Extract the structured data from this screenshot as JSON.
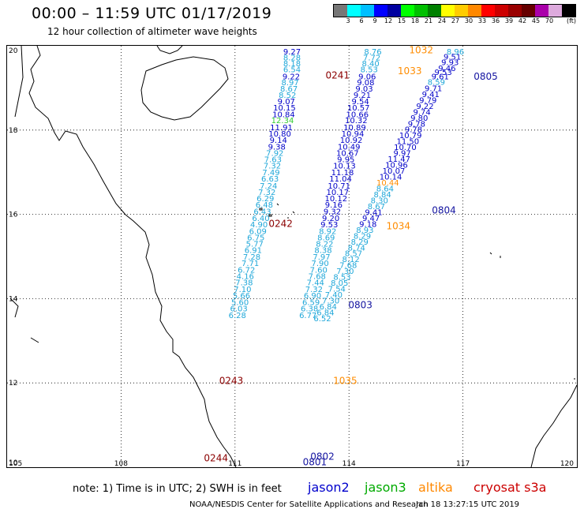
{
  "title": "00:00 – 11:59 UTC 01/17/2019",
  "subtitle": "12 hour collection of altimeter wave heights",
  "scale": {
    "unit": "(ft)",
    "colors": [
      "#777777",
      "#00ffff",
      "#00bfff",
      "#0000ff",
      "#0000a0",
      "#00ff00",
      "#00c000",
      "#008000",
      "#ffff00",
      "#ffcc00",
      "#ff8800",
      "#ff0000",
      "#cc0000",
      "#990000",
      "#660000",
      "#aa00aa",
      "#ddaadd",
      "#000000"
    ],
    "ticks": [
      "3",
      "6",
      "9",
      "12",
      "15",
      "18",
      "21",
      "24",
      "27",
      "30",
      "33",
      "36",
      "39",
      "42",
      "45",
      "70"
    ]
  },
  "axes": {
    "x_ticks": [
      "105",
      "108",
      "111",
      "114",
      "117",
      "120"
    ],
    "y_ticks": [
      "20",
      "18",
      "16",
      "14",
      "12",
      "10"
    ]
  },
  "note": "note:  1) Time is in UTC; 2) SWH is in feet",
  "satellites": [
    {
      "name": "jason2",
      "color": "#0000cc"
    },
    {
      "name": "jason3",
      "color": "#00aa00"
    },
    {
      "name": "altika",
      "color": "#ff8800"
    },
    {
      "name": "cryosat s3a",
      "color": "#cc0000"
    }
  ],
  "credit": "NOAA/NESDIS Center for Satellite Applications and Research",
  "timestamp": "Jan 18 13:27:15 UTC 2019",
  "palette": {
    "cyan": "#1fa7d9",
    "blue": "#0000c8",
    "dark": "#1414a0",
    "orange": "#ff8c00",
    "maroon": "#8b0000",
    "green": "#33cc33"
  },
  "wave_labels": {
    "track_a": [
      {
        "v": "9.27",
        "c": "blue",
        "lon": 112.5,
        "lat": 19.87
      },
      {
        "v": "8.28",
        "c": "cyan",
        "lon": 112.5,
        "lat": 19.73
      },
      {
        "v": "8.18",
        "c": "cyan",
        "lon": 112.5,
        "lat": 19.59
      },
      {
        "v": "6.54",
        "c": "cyan",
        "lon": 112.5,
        "lat": 19.45
      },
      {
        "v": "9.22",
        "c": "blue",
        "lon": 112.48,
        "lat": 19.28
      },
      {
        "v": "8.97",
        "c": "cyan",
        "lon": 112.45,
        "lat": 19.14
      },
      {
        "v": "8.67",
        "c": "cyan",
        "lon": 112.42,
        "lat": 18.99
      },
      {
        "v": "8.52",
        "c": "cyan",
        "lon": 112.38,
        "lat": 18.84
      },
      {
        "v": "9.07",
        "c": "blue",
        "lon": 112.35,
        "lat": 18.69
      },
      {
        "v": "10.15",
        "c": "blue",
        "lon": 112.3,
        "lat": 18.54
      },
      {
        "v": "10.84",
        "c": "blue",
        "lon": 112.28,
        "lat": 18.38
      },
      {
        "v": "12.34",
        "c": "green",
        "lon": 112.25,
        "lat": 18.24
      },
      {
        "v": "11.91",
        "c": "blue",
        "lon": 112.22,
        "lat": 18.07
      },
      {
        "v": "10.80",
        "c": "blue",
        "lon": 112.18,
        "lat": 17.92
      },
      {
        "v": "9.14",
        "c": "blue",
        "lon": 112.14,
        "lat": 17.77
      },
      {
        "v": "9.38",
        "c": "blue",
        "lon": 112.1,
        "lat": 17.61
      },
      {
        "v": "7.92",
        "c": "cyan",
        "lon": 112.05,
        "lat": 17.46
      },
      {
        "v": "7.63",
        "c": "cyan",
        "lon": 112.0,
        "lat": 17.31
      },
      {
        "v": "7.32",
        "c": "cyan",
        "lon": 111.98,
        "lat": 17.16
      },
      {
        "v": "7.49",
        "c": "cyan",
        "lon": 111.95,
        "lat": 17.0
      },
      {
        "v": "6.63",
        "c": "cyan",
        "lon": 111.92,
        "lat": 16.85
      },
      {
        "v": "7.24",
        "c": "cyan",
        "lon": 111.88,
        "lat": 16.69
      },
      {
        "v": "7.32",
        "c": "cyan",
        "lon": 111.84,
        "lat": 16.54
      },
      {
        "v": "6.29",
        "c": "cyan",
        "lon": 111.8,
        "lat": 16.39
      },
      {
        "v": "6.48",
        "c": "cyan",
        "lon": 111.77,
        "lat": 16.24
      },
      {
        "v": "6.43",
        "c": "cyan",
        "lon": 111.72,
        "lat": 16.08
      },
      {
        "v": "6.40",
        "c": "cyan",
        "lon": 111.68,
        "lat": 15.92
      },
      {
        "v": "4.90",
        "c": "cyan",
        "lon": 111.63,
        "lat": 15.77
      },
      {
        "v": "6.09",
        "c": "cyan",
        "lon": 111.6,
        "lat": 15.61
      },
      {
        "v": "6.75",
        "c": "cyan",
        "lon": 111.55,
        "lat": 15.46
      },
      {
        "v": "5.77",
        "c": "cyan",
        "lon": 111.52,
        "lat": 15.31
      },
      {
        "v": "6.91",
        "c": "cyan",
        "lon": 111.48,
        "lat": 15.16
      },
      {
        "v": "7.28",
        "c": "cyan",
        "lon": 111.44,
        "lat": 15.0
      },
      {
        "v": "7.71",
        "c": "cyan",
        "lon": 111.4,
        "lat": 14.85
      },
      {
        "v": "6.72",
        "c": "cyan",
        "lon": 111.3,
        "lat": 14.69
      },
      {
        "v": "4.16",
        "c": "cyan",
        "lon": 111.27,
        "lat": 14.54
      },
      {
        "v": "7.38",
        "c": "cyan",
        "lon": 111.24,
        "lat": 14.39
      },
      {
        "v": "7.10",
        "c": "cyan",
        "lon": 111.2,
        "lat": 14.23
      },
      {
        "v": "5.66",
        "c": "cyan",
        "lon": 111.17,
        "lat": 14.08
      },
      {
        "v": "5.60",
        "c": "cyan",
        "lon": 111.13,
        "lat": 13.92
      },
      {
        "v": "6.03",
        "c": "cyan",
        "lon": 111.1,
        "lat": 13.77
      },
      {
        "v": "6.28",
        "c": "cyan",
        "lon": 111.06,
        "lat": 13.61
      }
    ],
    "track_b": [
      {
        "v": "8.76",
        "c": "cyan",
        "lon": 114.63,
        "lat": 19.87
      },
      {
        "v": "7.72",
        "c": "cyan",
        "lon": 114.6,
        "lat": 19.73
      },
      {
        "v": "8.40",
        "c": "cyan",
        "lon": 114.57,
        "lat": 19.59
      },
      {
        "v": "8.53",
        "c": "cyan",
        "lon": 114.53,
        "lat": 19.45
      },
      {
        "v": "9.06",
        "c": "blue",
        "lon": 114.48,
        "lat": 19.28
      },
      {
        "v": "9.08",
        "c": "blue",
        "lon": 114.44,
        "lat": 19.14
      },
      {
        "v": "9.03",
        "c": "blue",
        "lon": 114.4,
        "lat": 18.99
      },
      {
        "v": "9.21",
        "c": "blue",
        "lon": 114.35,
        "lat": 18.84
      },
      {
        "v": "9.54",
        "c": "blue",
        "lon": 114.3,
        "lat": 18.69
      },
      {
        "v": "10.57",
        "c": "blue",
        "lon": 114.25,
        "lat": 18.54
      },
      {
        "v": "10.66",
        "c": "blue",
        "lon": 114.22,
        "lat": 18.38
      },
      {
        "v": "10.32",
        "c": "blue",
        "lon": 114.19,
        "lat": 18.24
      },
      {
        "v": "10.89",
        "c": "blue",
        "lon": 114.15,
        "lat": 18.07
      },
      {
        "v": "10.94",
        "c": "blue",
        "lon": 114.1,
        "lat": 17.92
      },
      {
        "v": "10.92",
        "c": "blue",
        "lon": 114.06,
        "lat": 17.77
      },
      {
        "v": "10.49",
        "c": "blue",
        "lon": 114.0,
        "lat": 17.61
      },
      {
        "v": "10.67",
        "c": "blue",
        "lon": 113.96,
        "lat": 17.46
      },
      {
        "v": "9.95",
        "c": "blue",
        "lon": 113.92,
        "lat": 17.31
      },
      {
        "v": "10.13",
        "c": "blue",
        "lon": 113.88,
        "lat": 17.16
      },
      {
        "v": "11.18",
        "c": "blue",
        "lon": 113.83,
        "lat": 17.0
      },
      {
        "v": "11.04",
        "c": "blue",
        "lon": 113.78,
        "lat": 16.85
      },
      {
        "v": "10.71",
        "c": "blue",
        "lon": 113.74,
        "lat": 16.69
      },
      {
        "v": "10.17",
        "c": "blue",
        "lon": 113.7,
        "lat": 16.54
      },
      {
        "v": "10.12",
        "c": "blue",
        "lon": 113.66,
        "lat": 16.39
      },
      {
        "v": "9.16",
        "c": "blue",
        "lon": 113.6,
        "lat": 16.24
      },
      {
        "v": "9.32",
        "c": "blue",
        "lon": 113.56,
        "lat": 16.08
      },
      {
        "v": "9.20",
        "c": "blue",
        "lon": 113.52,
        "lat": 15.92
      },
      {
        "v": "9.53",
        "c": "blue",
        "lon": 113.48,
        "lat": 15.77
      },
      {
        "v": "8.92",
        "c": "cyan",
        "lon": 113.44,
        "lat": 15.61
      },
      {
        "v": "8.69",
        "c": "cyan",
        "lon": 113.4,
        "lat": 15.46
      },
      {
        "v": "8.22",
        "c": "cyan",
        "lon": 113.36,
        "lat": 15.31
      },
      {
        "v": "8.38",
        "c": "cyan",
        "lon": 113.32,
        "lat": 15.16
      },
      {
        "v": "7.97",
        "c": "cyan",
        "lon": 113.28,
        "lat": 15.0
      },
      {
        "v": "7.90",
        "c": "cyan",
        "lon": 113.24,
        "lat": 14.85
      },
      {
        "v": "7.60",
        "c": "cyan",
        "lon": 113.2,
        "lat": 14.69
      },
      {
        "v": "7.68",
        "c": "cyan",
        "lon": 113.16,
        "lat": 14.54
      },
      {
        "v": "7.44",
        "c": "cyan",
        "lon": 113.12,
        "lat": 14.39
      },
      {
        "v": "7.32",
        "c": "cyan",
        "lon": 113.08,
        "lat": 14.23
      },
      {
        "v": "6.90",
        "c": "cyan",
        "lon": 113.04,
        "lat": 14.08
      },
      {
        "v": "6.59",
        "c": "cyan",
        "lon": 113.0,
        "lat": 13.92
      },
      {
        "v": "6.38",
        "c": "cyan",
        "lon": 112.96,
        "lat": 13.77
      },
      {
        "v": "6.77",
        "c": "cyan",
        "lon": 112.92,
        "lat": 13.61
      }
    ],
    "track_c": [
      {
        "v": "8.96",
        "c": "cyan",
        "lon": 116.8,
        "lat": 19.87
      },
      {
        "v": "9.51",
        "c": "blue",
        "lon": 116.72,
        "lat": 19.75
      },
      {
        "v": "9.93",
        "c": "blue",
        "lon": 116.66,
        "lat": 19.62
      },
      {
        "v": "9.46",
        "c": "blue",
        "lon": 116.58,
        "lat": 19.48
      },
      {
        "v": "9.53",
        "c": "blue",
        "lon": 116.48,
        "lat": 19.38
      },
      {
        "v": "9.61",
        "c": "blue",
        "lon": 116.4,
        "lat": 19.28
      },
      {
        "v": "8.59",
        "c": "cyan",
        "lon": 116.3,
        "lat": 19.15
      },
      {
        "v": "9.71",
        "c": "blue",
        "lon": 116.22,
        "lat": 19.0
      },
      {
        "v": "9.41",
        "c": "blue",
        "lon": 116.15,
        "lat": 18.86
      },
      {
        "v": "9.79",
        "c": "blue",
        "lon": 116.08,
        "lat": 18.72
      },
      {
        "v": "9.22",
        "c": "blue",
        "lon": 116.0,
        "lat": 18.58
      },
      {
        "v": "9.74",
        "c": "blue",
        "lon": 115.92,
        "lat": 18.44
      },
      {
        "v": "9.80",
        "c": "blue",
        "lon": 115.85,
        "lat": 18.3
      },
      {
        "v": "9.78",
        "c": "blue",
        "lon": 115.78,
        "lat": 18.16
      },
      {
        "v": "9.78",
        "c": "blue",
        "lon": 115.7,
        "lat": 18.02
      },
      {
        "v": "10.79",
        "c": "blue",
        "lon": 115.62,
        "lat": 17.88
      },
      {
        "v": "11.50",
        "c": "blue",
        "lon": 115.55,
        "lat": 17.74
      },
      {
        "v": "10.70",
        "c": "blue",
        "lon": 115.48,
        "lat": 17.6
      },
      {
        "v": "9.97",
        "c": "blue",
        "lon": 115.4,
        "lat": 17.46
      },
      {
        "v": "11.47",
        "c": "blue",
        "lon": 115.32,
        "lat": 17.32
      },
      {
        "v": "10.96",
        "c": "blue",
        "lon": 115.25,
        "lat": 17.18
      },
      {
        "v": "10.07",
        "c": "blue",
        "lon": 115.18,
        "lat": 17.04
      },
      {
        "v": "10.14",
        "c": "blue",
        "lon": 115.1,
        "lat": 16.9
      },
      {
        "v": "10.44",
        "c": "orange",
        "lon": 115.02,
        "lat": 16.76
      },
      {
        "v": "8.64",
        "c": "cyan",
        "lon": 114.95,
        "lat": 16.62
      },
      {
        "v": "8.84",
        "c": "cyan",
        "lon": 114.88,
        "lat": 16.48
      },
      {
        "v": "8.30",
        "c": "cyan",
        "lon": 114.8,
        "lat": 16.34
      },
      {
        "v": "8.67",
        "c": "cyan",
        "lon": 114.72,
        "lat": 16.2
      },
      {
        "v": "9.41",
        "c": "blue",
        "lon": 114.65,
        "lat": 16.06
      },
      {
        "v": "9.47",
        "c": "blue",
        "lon": 114.58,
        "lat": 15.92
      },
      {
        "v": "9.18",
        "c": "blue",
        "lon": 114.5,
        "lat": 15.78
      },
      {
        "v": "8.93",
        "c": "cyan",
        "lon": 114.42,
        "lat": 15.64
      },
      {
        "v": "8.29",
        "c": "cyan",
        "lon": 114.35,
        "lat": 15.5
      },
      {
        "v": "8.29",
        "c": "cyan",
        "lon": 114.28,
        "lat": 15.36
      },
      {
        "v": "8.74",
        "c": "cyan",
        "lon": 114.2,
        "lat": 15.22
      },
      {
        "v": "8.57",
        "c": "cyan",
        "lon": 114.12,
        "lat": 15.08
      },
      {
        "v": "8.12",
        "c": "cyan",
        "lon": 114.05,
        "lat": 14.94
      },
      {
        "v": "7.68",
        "c": "cyan",
        "lon": 113.98,
        "lat": 14.8
      },
      {
        "v": "7.30",
        "c": "cyan",
        "lon": 113.9,
        "lat": 14.66
      },
      {
        "v": "8.53",
        "c": "cyan",
        "lon": 113.82,
        "lat": 14.52
      },
      {
        "v": "8.05",
        "c": "cyan",
        "lon": 113.75,
        "lat": 14.38
      },
      {
        "v": "7.54",
        "c": "cyan",
        "lon": 113.68,
        "lat": 14.24
      },
      {
        "v": "7.40",
        "c": "cyan",
        "lon": 113.6,
        "lat": 14.1
      },
      {
        "v": "7.30",
        "c": "cyan",
        "lon": 113.52,
        "lat": 13.96
      },
      {
        "v": "6.84",
        "c": "cyan",
        "lon": 113.45,
        "lat": 13.82
      },
      {
        "v": "6.84",
        "c": "cyan",
        "lon": 113.38,
        "lat": 13.68
      },
      {
        "v": "6.52",
        "c": "cyan",
        "lon": 113.3,
        "lat": 13.54
      }
    ]
  },
  "pass_labels": [
    {
      "t": "0241",
      "c": "maroon",
      "lon": 113.7,
      "lat": 19.3
    },
    {
      "t": "1032",
      "c": "orange",
      "lon": 115.9,
      "lat": 19.9
    },
    {
      "t": "1033",
      "c": "orange",
      "lon": 115.6,
      "lat": 19.4
    },
    {
      "t": "0805",
      "c": "dark",
      "lon": 117.6,
      "lat": 19.27
    },
    {
      "t": "0804",
      "c": "dark",
      "lon": 116.5,
      "lat": 16.1
    },
    {
      "t": "0242",
      "c": "maroon",
      "lon": 112.2,
      "lat": 15.78
    },
    {
      "t": "1034",
      "c": "orange",
      "lon": 115.3,
      "lat": 15.72
    },
    {
      "t": "0803",
      "c": "dark",
      "lon": 114.3,
      "lat": 13.85
    },
    {
      "t": "0243",
      "c": "maroon",
      "lon": 110.9,
      "lat": 12.05
    },
    {
      "t": "1035",
      "c": "orange",
      "lon": 113.9,
      "lat": 12.05
    },
    {
      "t": "0244",
      "c": "maroon",
      "lon": 110.5,
      "lat": 10.22
    },
    {
      "t": "0802",
      "c": "dark",
      "lon": 113.3,
      "lat": 10.25
    },
    {
      "t": "0801",
      "c": "dark",
      "lon": 113.1,
      "lat": 10.12
    }
  ]
}
